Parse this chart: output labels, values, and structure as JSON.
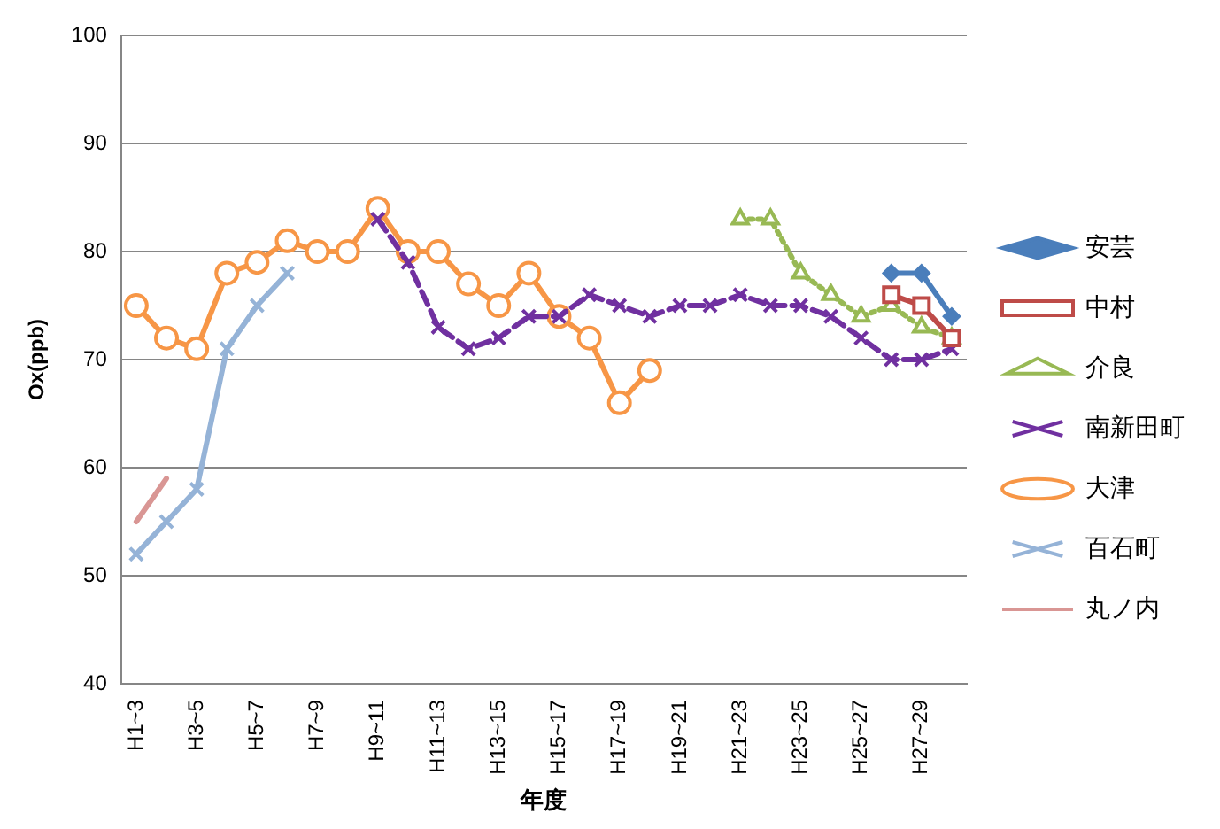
{
  "chart_data": {
    "type": "line",
    "xlabel": "年度",
    "ylabel": "Ox(ppb)",
    "categories": [
      "H1~3",
      null,
      "H3~5",
      null,
      "H5~7",
      null,
      "H7~9",
      null,
      "H9~11",
      null,
      "H11~13",
      null,
      "H13~15",
      null,
      "H15~17",
      null,
      "H17~19",
      null,
      "H19~21",
      null,
      "H21~23",
      null,
      "H23~25",
      null,
      "H25~27",
      null,
      "H27~29",
      null
    ],
    "ylim": [
      40,
      100
    ],
    "yticks": [
      40,
      50,
      60,
      70,
      80,
      90,
      100
    ],
    "grid": "y",
    "legend": "right",
    "series": [
      {
        "name": "安芸",
        "color": "#4a7ebb",
        "marker": "diamond",
        "line_style": "solid",
        "values": [
          null,
          null,
          null,
          null,
          null,
          null,
          null,
          null,
          null,
          null,
          null,
          null,
          null,
          null,
          null,
          null,
          null,
          null,
          null,
          null,
          null,
          null,
          null,
          null,
          null,
          78,
          78,
          74
        ]
      },
      {
        "name": "中村",
        "color": "#be4b48",
        "marker": "square",
        "line_style": "solid",
        "values": [
          null,
          null,
          null,
          null,
          null,
          null,
          null,
          null,
          null,
          null,
          null,
          null,
          null,
          null,
          null,
          null,
          null,
          null,
          null,
          null,
          null,
          null,
          null,
          null,
          null,
          76,
          75,
          72
        ]
      },
      {
        "name": "介良",
        "color": "#98b954",
        "marker": "triangle",
        "line_style": "dotted",
        "values": [
          null,
          null,
          null,
          null,
          null,
          null,
          null,
          null,
          null,
          null,
          null,
          null,
          null,
          null,
          null,
          null,
          null,
          null,
          null,
          null,
          83,
          83,
          78,
          76,
          74,
          75,
          73,
          72
        ]
      },
      {
        "name": "南新田町",
        "color": "#7030a0",
        "marker": "cross",
        "line_style": "dashed",
        "values": [
          null,
          null,
          null,
          null,
          null,
          null,
          null,
          null,
          83,
          79,
          73,
          71,
          72,
          74,
          74,
          76,
          75,
          74,
          75,
          75,
          76,
          75,
          75,
          74,
          72,
          70,
          70,
          71
        ]
      },
      {
        "name": "大津",
        "color": "#f79646",
        "marker": "circle",
        "line_style": "solid",
        "values": [
          75,
          72,
          71,
          78,
          79,
          81,
          80,
          80,
          84,
          80,
          80,
          77,
          75,
          78,
          74,
          72,
          66,
          69,
          null,
          null,
          null,
          null,
          null,
          null,
          null,
          null,
          null,
          null
        ]
      },
      {
        "name": "百石町",
        "color": "#95b3d7",
        "marker": "cross",
        "line_style": "solid",
        "values": [
          52,
          55,
          58,
          71,
          75,
          78,
          null,
          null,
          null,
          null,
          null,
          null,
          null,
          null,
          null,
          null,
          null,
          null,
          null,
          null,
          null,
          null,
          null,
          null,
          null,
          null,
          null,
          null
        ]
      },
      {
        "name": "丸ノ内",
        "color": "#d99694",
        "marker": "none",
        "line_style": "solid",
        "values": [
          55,
          59,
          null,
          null,
          null,
          null,
          null,
          null,
          null,
          null,
          null,
          null,
          null,
          null,
          null,
          null,
          null,
          null,
          null,
          null,
          null,
          null,
          null,
          null,
          null,
          null,
          null,
          null
        ]
      }
    ]
  }
}
